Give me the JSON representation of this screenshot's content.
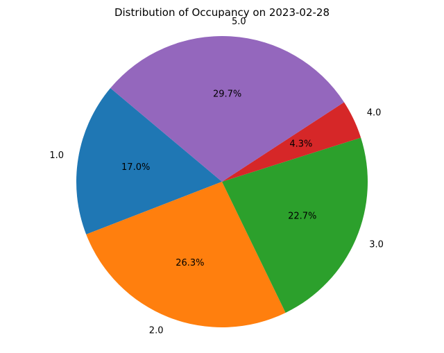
{
  "chart_data": {
    "type": "pie",
    "title": "Distribution of Occupancy on 2023-02-28",
    "categories": [
      "1.0",
      "2.0",
      "3.0",
      "4.0",
      "5.0"
    ],
    "values": [
      17.0,
      26.3,
      22.7,
      4.3,
      29.7
    ],
    "value_labels": [
      "17.0%",
      "26.3%",
      "22.7%",
      "4.3%",
      "29.7%"
    ],
    "colors": [
      "#1f77b4",
      "#ff7f0e",
      "#2ca02c",
      "#d62728",
      "#9467bd"
    ],
    "start_angle_deg": 140,
    "direction": "counterclockwise",
    "legend": "none"
  }
}
